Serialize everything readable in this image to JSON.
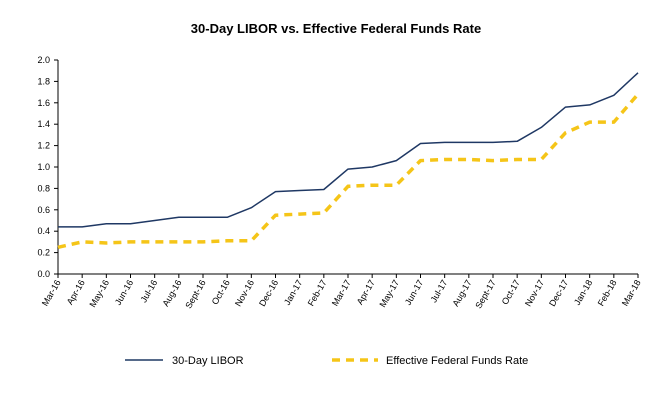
{
  "chart_data": {
    "type": "line",
    "title": "30-Day LIBOR vs. Effective Federal Funds Rate",
    "xlabel": "",
    "ylabel": "",
    "ylim": [
      0,
      2.0
    ],
    "yticks": [
      "0.0",
      "0.2",
      "0.4",
      "0.6",
      "0.8",
      "1.0",
      "1.2",
      "1.4",
      "1.6",
      "1.8",
      "2.0"
    ],
    "categories": [
      "Mar-16",
      "Apr-16",
      "May-16",
      "Jun-16",
      "Jul-16",
      "Aug-16",
      "Sept-16",
      "Oct-16",
      "Nov-16",
      "Dec-16",
      "Jan-17",
      "Feb-17",
      "Mar-17",
      "Apr-17",
      "May-17",
      "Jun-17",
      "Jul-17",
      "Aug-17",
      "Sept-17",
      "Oct-17",
      "Nov-17",
      "Dec-17",
      "Jan-18",
      "Feb-18",
      "Mar-18"
    ],
    "series": [
      {
        "name": "30-Day LIBOR",
        "color": "#1f3864",
        "style": "solid",
        "values": [
          0.44,
          0.44,
          0.47,
          0.47,
          0.5,
          0.53,
          0.53,
          0.53,
          0.62,
          0.77,
          0.78,
          0.79,
          0.98,
          1.0,
          1.06,
          1.22,
          1.23,
          1.23,
          1.23,
          1.24,
          1.37,
          1.56,
          1.58,
          1.67,
          1.88
        ]
      },
      {
        "name": "Effective Federal Funds Rate",
        "color": "#f5c518",
        "style": "dashed",
        "values": [
          0.25,
          0.3,
          0.29,
          0.3,
          0.3,
          0.3,
          0.3,
          0.31,
          0.31,
          0.55,
          0.56,
          0.57,
          0.82,
          0.83,
          0.83,
          1.06,
          1.07,
          1.07,
          1.06,
          1.07,
          1.07,
          1.32,
          1.42,
          1.42,
          1.68
        ]
      }
    ],
    "legend": "bottom",
    "grid": false
  }
}
